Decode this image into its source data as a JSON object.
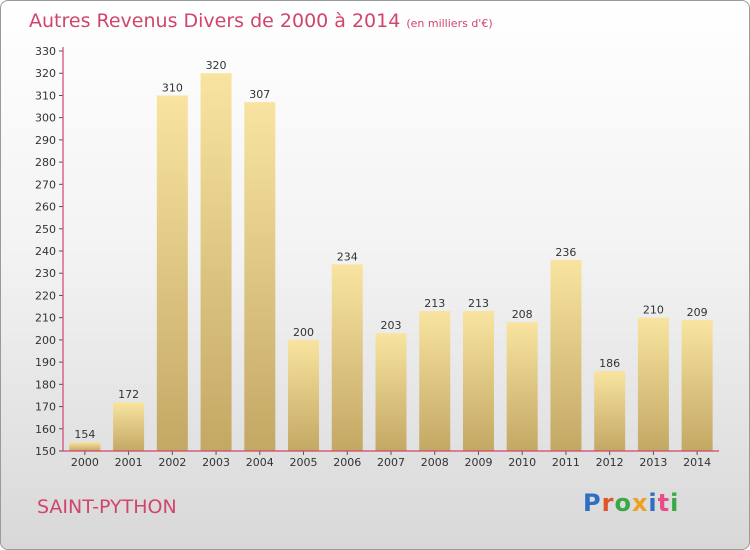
{
  "header": {
    "title": "Autres Revenus Divers de 2000 à 2014",
    "unit": "(en milliers d'€)"
  },
  "footer": {
    "city": "SAINT-PYTHON",
    "logo_text": "Proxiti",
    "logo_colors": [
      "#2f6fc2",
      "#e0542a",
      "#3aa845",
      "#f0a020",
      "#2f6fc2",
      "#e84c8a",
      "#3aa845"
    ]
  },
  "colors": {
    "title": "#d0456b",
    "bar_light": "#f8e4a0",
    "bar_dark": "#c3a864",
    "axis": "#d0456b"
  },
  "chart_data": {
    "type": "bar",
    "title": "Autres Revenus Divers de 2000 à 2014",
    "subtitle": "(en milliers d'€)",
    "categories": [
      "2000",
      "2001",
      "2002",
      "2003",
      "2004",
      "2005",
      "2006",
      "2007",
      "2008",
      "2009",
      "2010",
      "2011",
      "2012",
      "2013",
      "2014"
    ],
    "values": [
      154,
      172,
      310,
      320,
      307,
      200,
      234,
      203,
      213,
      213,
      208,
      236,
      186,
      210,
      209
    ],
    "ylim": [
      150,
      330
    ],
    "ytick_step": 10,
    "grid": false,
    "data_labels": true
  }
}
